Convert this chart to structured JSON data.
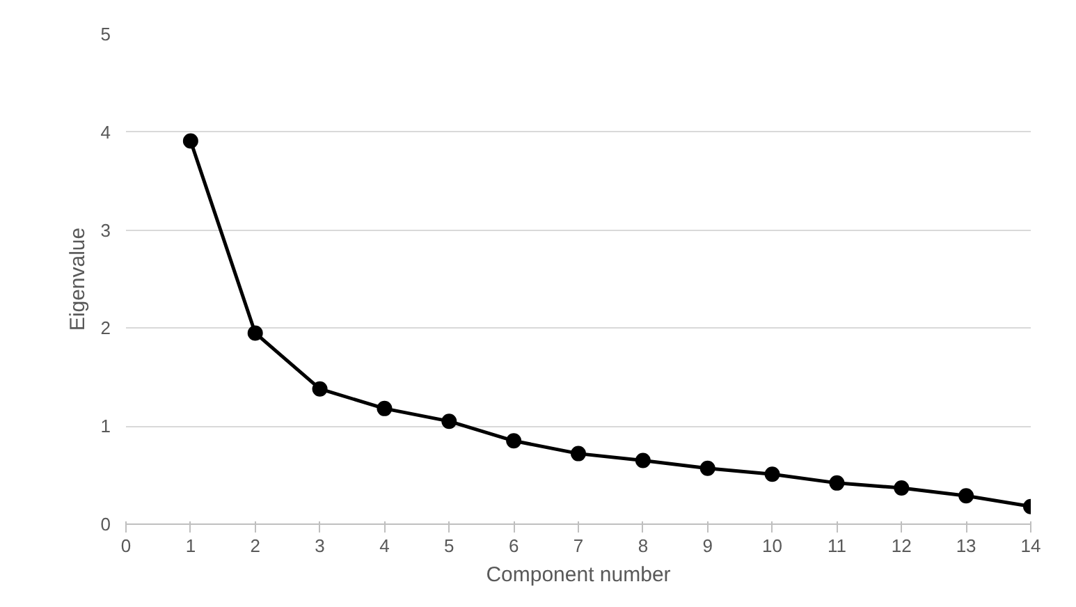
{
  "chart_data": {
    "type": "line",
    "xlabel": "Component number",
    "ylabel": "Eigenvalue",
    "x": [
      1,
      2,
      3,
      4,
      5,
      6,
      7,
      8,
      9,
      10,
      11,
      12,
      13,
      14
    ],
    "series": [
      {
        "color": "#000000",
        "values": [
          3.91,
          1.95,
          1.38,
          1.18,
          1.05,
          0.85,
          0.72,
          0.65,
          0.57,
          0.51,
          0.42,
          0.37,
          0.29,
          0.18
        ]
      }
    ],
    "xlim": [
      0,
      14
    ],
    "xticks": [
      0,
      1,
      2,
      3,
      4,
      5,
      6,
      7,
      8,
      9,
      10,
      11,
      12,
      13,
      14
    ],
    "ylim": [
      0,
      5
    ],
    "yticks": [
      0,
      1,
      2,
      3,
      4,
      5
    ],
    "grid": "y",
    "marker": "circle",
    "line_style": "solid"
  }
}
